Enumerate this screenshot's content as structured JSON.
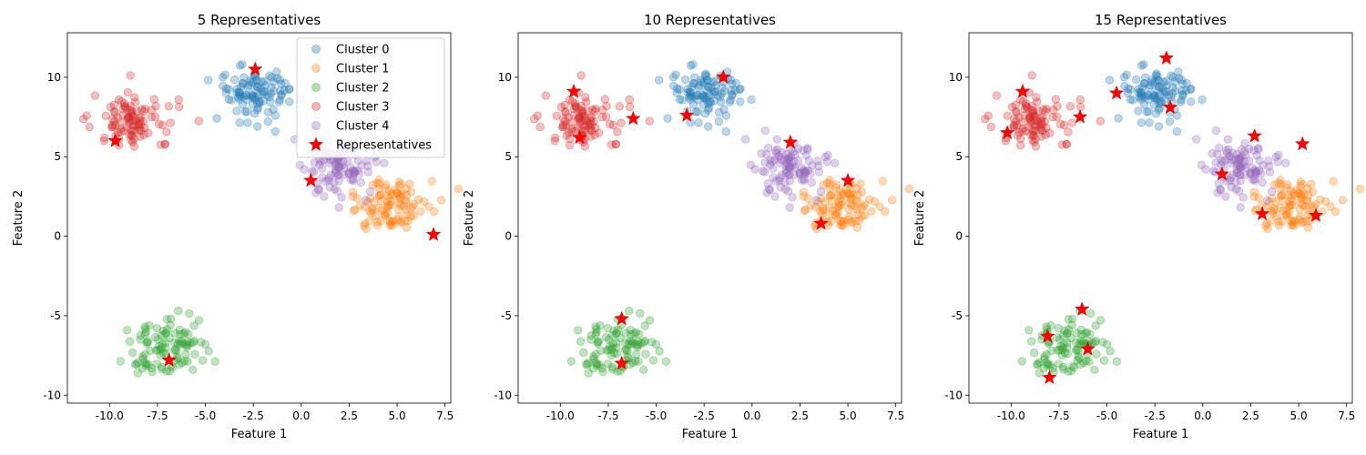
{
  "chart_data": [
    {
      "type": "scatter",
      "title": "5 Representatives",
      "xlabel": "Feature 1",
      "ylabel": "Feature 2",
      "xlim": [
        -12.2,
        7.8
      ],
      "ylim": [
        -10.5,
        12.8
      ],
      "xticks": [
        "-10.0",
        "-7.5",
        "-5.0",
        "-2.5",
        "0.0",
        "2.5",
        "5.0",
        "7.5"
      ],
      "yticks": [
        "-10",
        "-5",
        "0",
        "5",
        "10"
      ],
      "grid": false,
      "legend": "top-right",
      "representatives": [
        [
          -2.4,
          10.5
        ],
        [
          6.9,
          0.1
        ],
        [
          -6.9,
          -7.8
        ],
        [
          -9.7,
          6.0
        ],
        [
          0.5,
          3.5
        ]
      ]
    },
    {
      "type": "scatter",
      "title": "10 Representatives",
      "xlabel": "Feature 1",
      "ylabel": "Feature 2",
      "xlim": [
        -12.2,
        7.8
      ],
      "ylim": [
        -10.5,
        12.8
      ],
      "xticks": [
        "-10.0",
        "-7.5",
        "-5.0",
        "-2.5",
        "0.0",
        "2.5",
        "5.0",
        "7.5"
      ],
      "yticks": [
        "-10",
        "-5",
        "0",
        "5",
        "10"
      ],
      "grid": false,
      "legend": "none",
      "representatives": [
        [
          -1.5,
          10.0
        ],
        [
          -3.4,
          7.6
        ],
        [
          5.0,
          3.5
        ],
        [
          3.6,
          0.8
        ],
        [
          -6.8,
          -5.2
        ],
        [
          -6.8,
          -8.0
        ],
        [
          -9.3,
          9.1
        ],
        [
          -9.0,
          6.2
        ],
        [
          -6.2,
          7.4
        ],
        [
          2.0,
          5.9
        ]
      ]
    },
    {
      "type": "scatter",
      "title": "15 Representatives",
      "xlabel": "Feature 1",
      "ylabel": "Feature 2",
      "xlim": [
        -12.2,
        7.8
      ],
      "ylim": [
        -10.5,
        12.8
      ],
      "xticks": [
        "-10.0",
        "-7.5",
        "-5.0",
        "-2.5",
        "0.0",
        "2.5",
        "5.0",
        "7.5"
      ],
      "yticks": [
        "-10",
        "-5",
        "0",
        "5",
        "10"
      ],
      "grid": false,
      "legend": "none",
      "representatives": [
        [
          -1.9,
          11.2
        ],
        [
          -4.5,
          9.0
        ],
        [
          -1.7,
          8.1
        ],
        [
          3.1,
          1.4
        ],
        [
          5.2,
          5.8
        ],
        [
          5.9,
          1.3
        ],
        [
          -6.3,
          -4.6
        ],
        [
          -8.1,
          -6.3
        ],
        [
          -8.0,
          -8.9
        ],
        [
          -6.0,
          -7.1
        ],
        [
          -10.2,
          6.5
        ],
        [
          -9.4,
          9.1
        ],
        [
          -6.4,
          7.5
        ],
        [
          1.0,
          3.9
        ],
        [
          2.7,
          6.3
        ]
      ]
    }
  ],
  "legend": {
    "entries": [
      {
        "label": "Cluster 0",
        "color": "#1f77b4"
      },
      {
        "label": "Cluster 1",
        "color": "#ff7f0e"
      },
      {
        "label": "Cluster 2",
        "color": "#2ca02c"
      },
      {
        "label": "Cluster 3",
        "color": "#d62728"
      },
      {
        "label": "Cluster 4",
        "color": "#9467bd"
      }
    ],
    "representatives_label": "Representatives",
    "representatives_color": "#ff0000"
  },
  "clusters": [
    {
      "name": "Cluster 0",
      "color": "#1f77b4",
      "center": [
        -2.5,
        9.0
      ],
      "spread": [
        1.0,
        0.9
      ],
      "n": 100
    },
    {
      "name": "Cluster 1",
      "color": "#ff7f0e",
      "center": [
        4.7,
        2.0
      ],
      "spread": [
        1.0,
        0.9
      ],
      "n": 100
    },
    {
      "name": "Cluster 2",
      "color": "#2ca02c",
      "center": [
        -6.8,
        -7.0
      ],
      "spread": [
        1.0,
        1.0
      ],
      "n": 100
    },
    {
      "name": "Cluster 3",
      "color": "#d62728",
      "center": [
        -8.7,
        7.2
      ],
      "spread": [
        1.1,
        1.0
      ],
      "n": 100
    },
    {
      "name": "Cluster 4",
      "color": "#9467bd",
      "center": [
        2.0,
        4.3
      ],
      "spread": [
        1.0,
        1.0
      ],
      "n": 100
    }
  ]
}
